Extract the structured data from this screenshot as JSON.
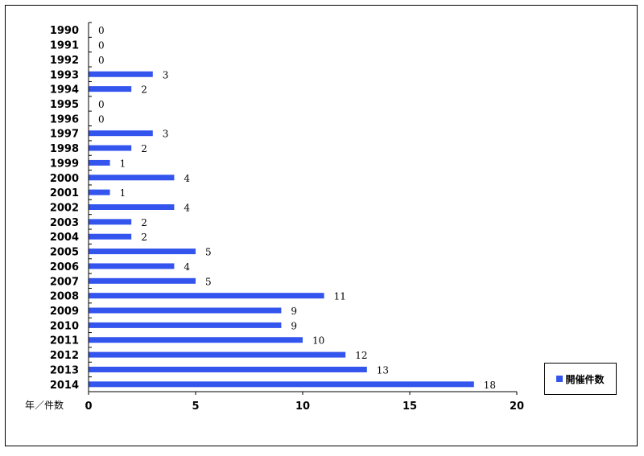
{
  "chart_data": {
    "type": "bar",
    "orientation": "horizontal",
    "categories": [
      "1990",
      "1991",
      "1992",
      "1993",
      "1994",
      "1995",
      "1996",
      "1997",
      "1998",
      "1999",
      "2000",
      "2001",
      "2002",
      "2003",
      "2004",
      "2005",
      "2006",
      "2007",
      "2008",
      "2009",
      "2010",
      "2011",
      "2012",
      "2013",
      "2014"
    ],
    "series": [
      {
        "name": "開催件数",
        "values": [
          0,
          0,
          0,
          3,
          2,
          0,
          0,
          3,
          2,
          1,
          4,
          1,
          4,
          2,
          2,
          5,
          4,
          5,
          11,
          9,
          9,
          10,
          12,
          13,
          18
        ]
      }
    ],
    "xlim": [
      0,
      20
    ],
    "xticks": [
      0,
      5,
      10,
      15,
      20
    ],
    "xtick_labels": [
      "0",
      "5",
      "10",
      "15",
      "20"
    ],
    "axis_caption": "年／件数",
    "legend": {
      "position": "bottom-right",
      "label": "開催件数"
    },
    "grid": false,
    "colors": {
      "bar": "#3355ee",
      "axis": "#000000"
    }
  }
}
